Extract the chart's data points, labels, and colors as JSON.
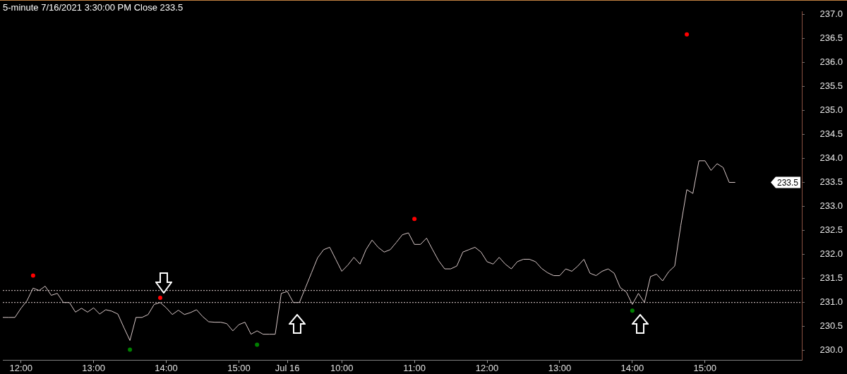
{
  "chart_data": {
    "type": "line",
    "title": "5-minute 7/16/2021 3:30:00 PM Close 233.5",
    "categories": [
      null,
      null,
      null,
      "12:00",
      null,
      null,
      null,
      null,
      null,
      null,
      null,
      null,
      null,
      null,
      null,
      "13:00",
      null,
      null,
      null,
      null,
      null,
      null,
      null,
      null,
      null,
      null,
      null,
      "14:00",
      null,
      null,
      null,
      null,
      null,
      null,
      null,
      null,
      null,
      null,
      null,
      "15:00",
      null,
      null,
      null,
      null,
      null,
      null,
      null,
      "Jul 16",
      null,
      null,
      null,
      null,
      null,
      null,
      null,
      null,
      "10:00",
      null,
      null,
      null,
      null,
      null,
      null,
      null,
      null,
      null,
      null,
      null,
      "11:00",
      null,
      null,
      null,
      null,
      null,
      null,
      null,
      null,
      null,
      null,
      null,
      "12:00",
      null,
      null,
      null,
      null,
      null,
      null,
      null,
      null,
      null,
      null,
      null,
      "13:00",
      null,
      null,
      null,
      null,
      null,
      null,
      null,
      null,
      null,
      null,
      null,
      "14:00",
      null,
      null,
      null,
      null,
      null,
      null,
      null,
      null,
      null,
      null,
      null,
      "15:00",
      null,
      null,
      null,
      null,
      null,
      null,
      null,
      null,
      null,
      null,
      null,
      null,
      null,
      null,
      null,
      null
    ],
    "series": [
      {
        "color": "#d8c8c8",
        "line_style": "solid",
        "values": [
          230.69,
          230.69,
          230.69,
          230.88,
          231.04,
          231.3,
          231.25,
          231.34,
          231.15,
          231.19,
          231.0,
          231.0,
          230.8,
          230.88,
          230.8,
          230.89,
          230.76,
          230.85,
          230.82,
          230.76,
          230.48,
          230.21,
          230.69,
          230.69,
          230.75,
          230.96,
          231.0,
          230.89,
          230.75,
          230.84,
          230.75,
          230.79,
          230.85,
          230.71,
          230.6,
          230.59,
          230.59,
          230.56,
          230.41,
          230.54,
          230.59,
          230.34,
          230.41,
          230.34,
          230.34,
          230.34,
          231.19,
          231.23,
          231.0,
          231.0,
          231.31,
          231.62,
          231.93,
          232.1,
          232.15,
          231.9,
          231.65,
          231.78,
          231.94,
          231.8,
          232.1,
          232.3,
          232.15,
          232.05,
          232.1,
          232.25,
          232.41,
          232.45,
          232.21,
          232.21,
          232.34,
          232.1,
          231.87,
          231.7,
          231.7,
          231.76,
          232.05,
          232.1,
          232.15,
          232.05,
          231.85,
          231.8,
          231.94,
          231.8,
          231.7,
          231.85,
          231.9,
          231.9,
          231.85,
          231.71,
          231.62,
          231.56,
          231.56,
          231.7,
          231.65,
          231.76,
          231.9,
          231.61,
          231.56,
          231.65,
          231.7,
          231.61,
          231.31,
          231.22,
          230.96,
          231.19,
          231.0,
          231.54,
          231.59,
          231.45,
          231.64,
          231.76,
          232.6,
          233.35,
          233.27,
          233.95,
          233.95,
          233.75,
          233.89,
          233.81,
          233.5,
          233.5,
          null,
          null,
          null,
          null,
          null,
          null,
          null,
          null,
          null,
          null,
          null
        ]
      },
      {
        "type": "scatter",
        "color": "#ff0000",
        "marker": "circle",
        "values": [
          null,
          null,
          null,
          null,
          null,
          231.56,
          null,
          null,
          null,
          null,
          null,
          null,
          null,
          null,
          null,
          null,
          null,
          null,
          null,
          null,
          null,
          null,
          null,
          null,
          null,
          null,
          231.1,
          null,
          null,
          null,
          null,
          null,
          null,
          null,
          null,
          null,
          null,
          null,
          null,
          null,
          null,
          null,
          null,
          null,
          null,
          null,
          null,
          null,
          null,
          null,
          null,
          null,
          null,
          null,
          null,
          null,
          null,
          null,
          null,
          null,
          null,
          null,
          null,
          null,
          null,
          null,
          null,
          null,
          232.74,
          null,
          null,
          null,
          null,
          null,
          null,
          null,
          null,
          null,
          null,
          null,
          null,
          null,
          null,
          null,
          null,
          null,
          null,
          null,
          null,
          null,
          null,
          null,
          null,
          null,
          null,
          null,
          null,
          null,
          null,
          null,
          null,
          null,
          null,
          null,
          null,
          null,
          null,
          null,
          null,
          null,
          null,
          null,
          null,
          236.58,
          null,
          null,
          null,
          null,
          null,
          null,
          null,
          null,
          null,
          null,
          null,
          null,
          null,
          null,
          null,
          null,
          null,
          null,
          null
        ]
      },
      {
        "type": "scatter",
        "color": "#008000",
        "marker": "circle",
        "values": [
          null,
          null,
          null,
          null,
          null,
          null,
          null,
          null,
          null,
          null,
          null,
          null,
          null,
          null,
          null,
          null,
          null,
          null,
          null,
          null,
          null,
          230.02,
          null,
          null,
          null,
          null,
          null,
          null,
          null,
          null,
          null,
          null,
          null,
          null,
          null,
          null,
          null,
          null,
          null,
          null,
          null,
          null,
          230.12,
          null,
          null,
          null,
          null,
          null,
          null,
          null,
          null,
          null,
          null,
          null,
          null,
          null,
          null,
          null,
          null,
          null,
          null,
          null,
          null,
          null,
          null,
          null,
          null,
          null,
          null,
          null,
          null,
          null,
          null,
          null,
          null,
          null,
          null,
          null,
          null,
          null,
          null,
          null,
          null,
          null,
          null,
          null,
          null,
          null,
          null,
          null,
          null,
          null,
          null,
          null,
          null,
          null,
          null,
          null,
          null,
          null,
          null,
          null,
          null,
          null,
          230.83,
          null,
          null,
          null,
          null,
          null,
          null,
          null,
          null,
          null,
          null,
          null,
          null,
          null,
          null,
          null,
          null,
          null,
          null,
          null,
          null,
          null,
          null,
          null,
          null,
          null,
          null,
          null,
          null
        ]
      }
    ],
    "ylim": [
      229.8,
      237.05
    ],
    "yticks": [
      {
        "value": 230,
        "label": "230.0"
      },
      {
        "value": 230.5,
        "label": "230.5"
      },
      {
        "value": 231,
        "label": "231.0"
      },
      {
        "value": 231.5,
        "label": "231.5"
      },
      {
        "value": 232,
        "label": "232.0"
      },
      {
        "value": 232.5,
        "label": "232.5"
      },
      {
        "value": 233,
        "label": "233.0"
      },
      {
        "value": 233.5,
        "label": "233.5"
      },
      {
        "value": 234,
        "label": "234.0"
      },
      {
        "value": 234.5,
        "label": "234.5"
      },
      {
        "value": 235,
        "label": "235.0"
      },
      {
        "value": 235.5,
        "label": "235.5"
      },
      {
        "value": 236,
        "label": "236.0"
      },
      {
        "value": 236.5,
        "label": "236.5"
      },
      {
        "value": 237,
        "label": "237.0"
      }
    ],
    "ref_lines": [
      {
        "axis": "y",
        "value": 231.25,
        "color": "#e0d0d0",
        "line_style": "dotted"
      },
      {
        "axis": "y",
        "value": 231.0,
        "color": "#e0d0d0",
        "line_style": "dotted"
      }
    ],
    "annotations": [
      "233.5"
    ],
    "grid": false,
    "legend": false
  }
}
